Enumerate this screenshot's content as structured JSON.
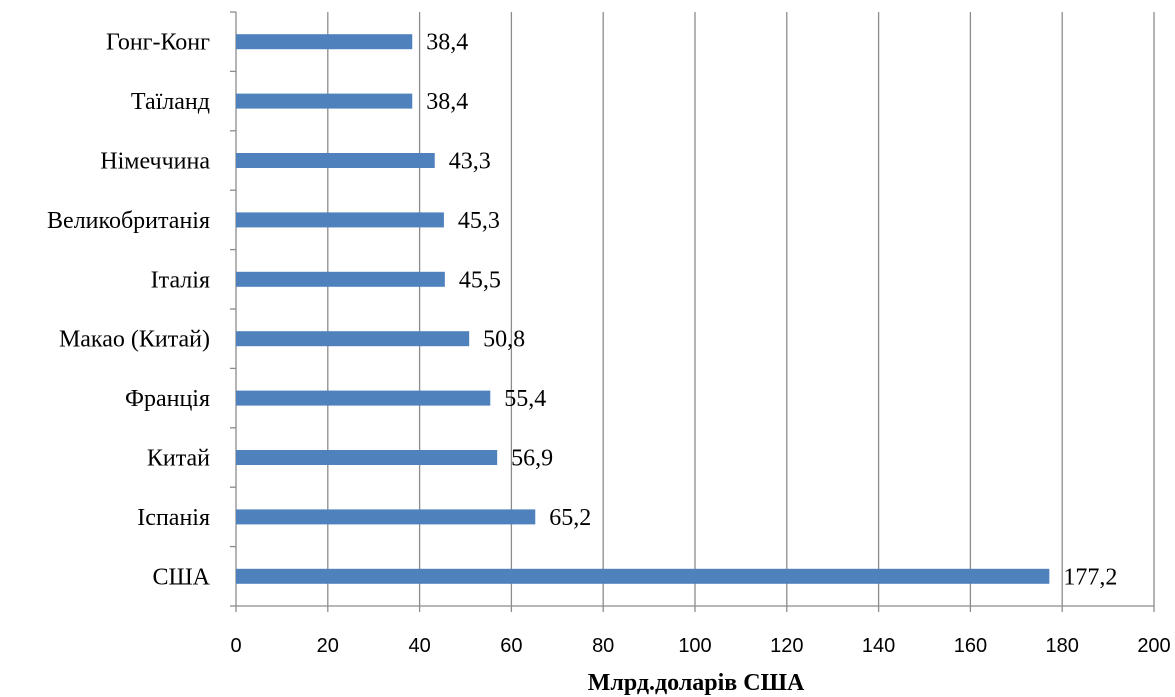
{
  "chart_data": {
    "type": "bar",
    "orientation": "horizontal",
    "categories": [
      "Гонг-Конг",
      "Таїланд",
      "Німеччина",
      "Великобританія",
      "Італія",
      "Макао (Китай)",
      "Франція",
      "Китай",
      "Іспанія",
      "США"
    ],
    "values": [
      38.4,
      38.4,
      43.3,
      45.3,
      45.5,
      50.8,
      55.4,
      56.9,
      65.2,
      177.2
    ],
    "value_labels": [
      "38,4",
      "38,4",
      "43,3",
      "45,3",
      "45,5",
      "50,8",
      "55,4",
      "56,9",
      "65,2",
      "177,2"
    ],
    "title": "",
    "xlabel": "Млрд.доларів США",
    "ylabel": "",
    "xlim": [
      0,
      200
    ],
    "x_ticks": [
      0,
      20,
      40,
      60,
      80,
      100,
      120,
      140,
      160,
      180,
      200
    ],
    "grid": true,
    "legend": "none",
    "bar_color": "#4f81bd"
  }
}
